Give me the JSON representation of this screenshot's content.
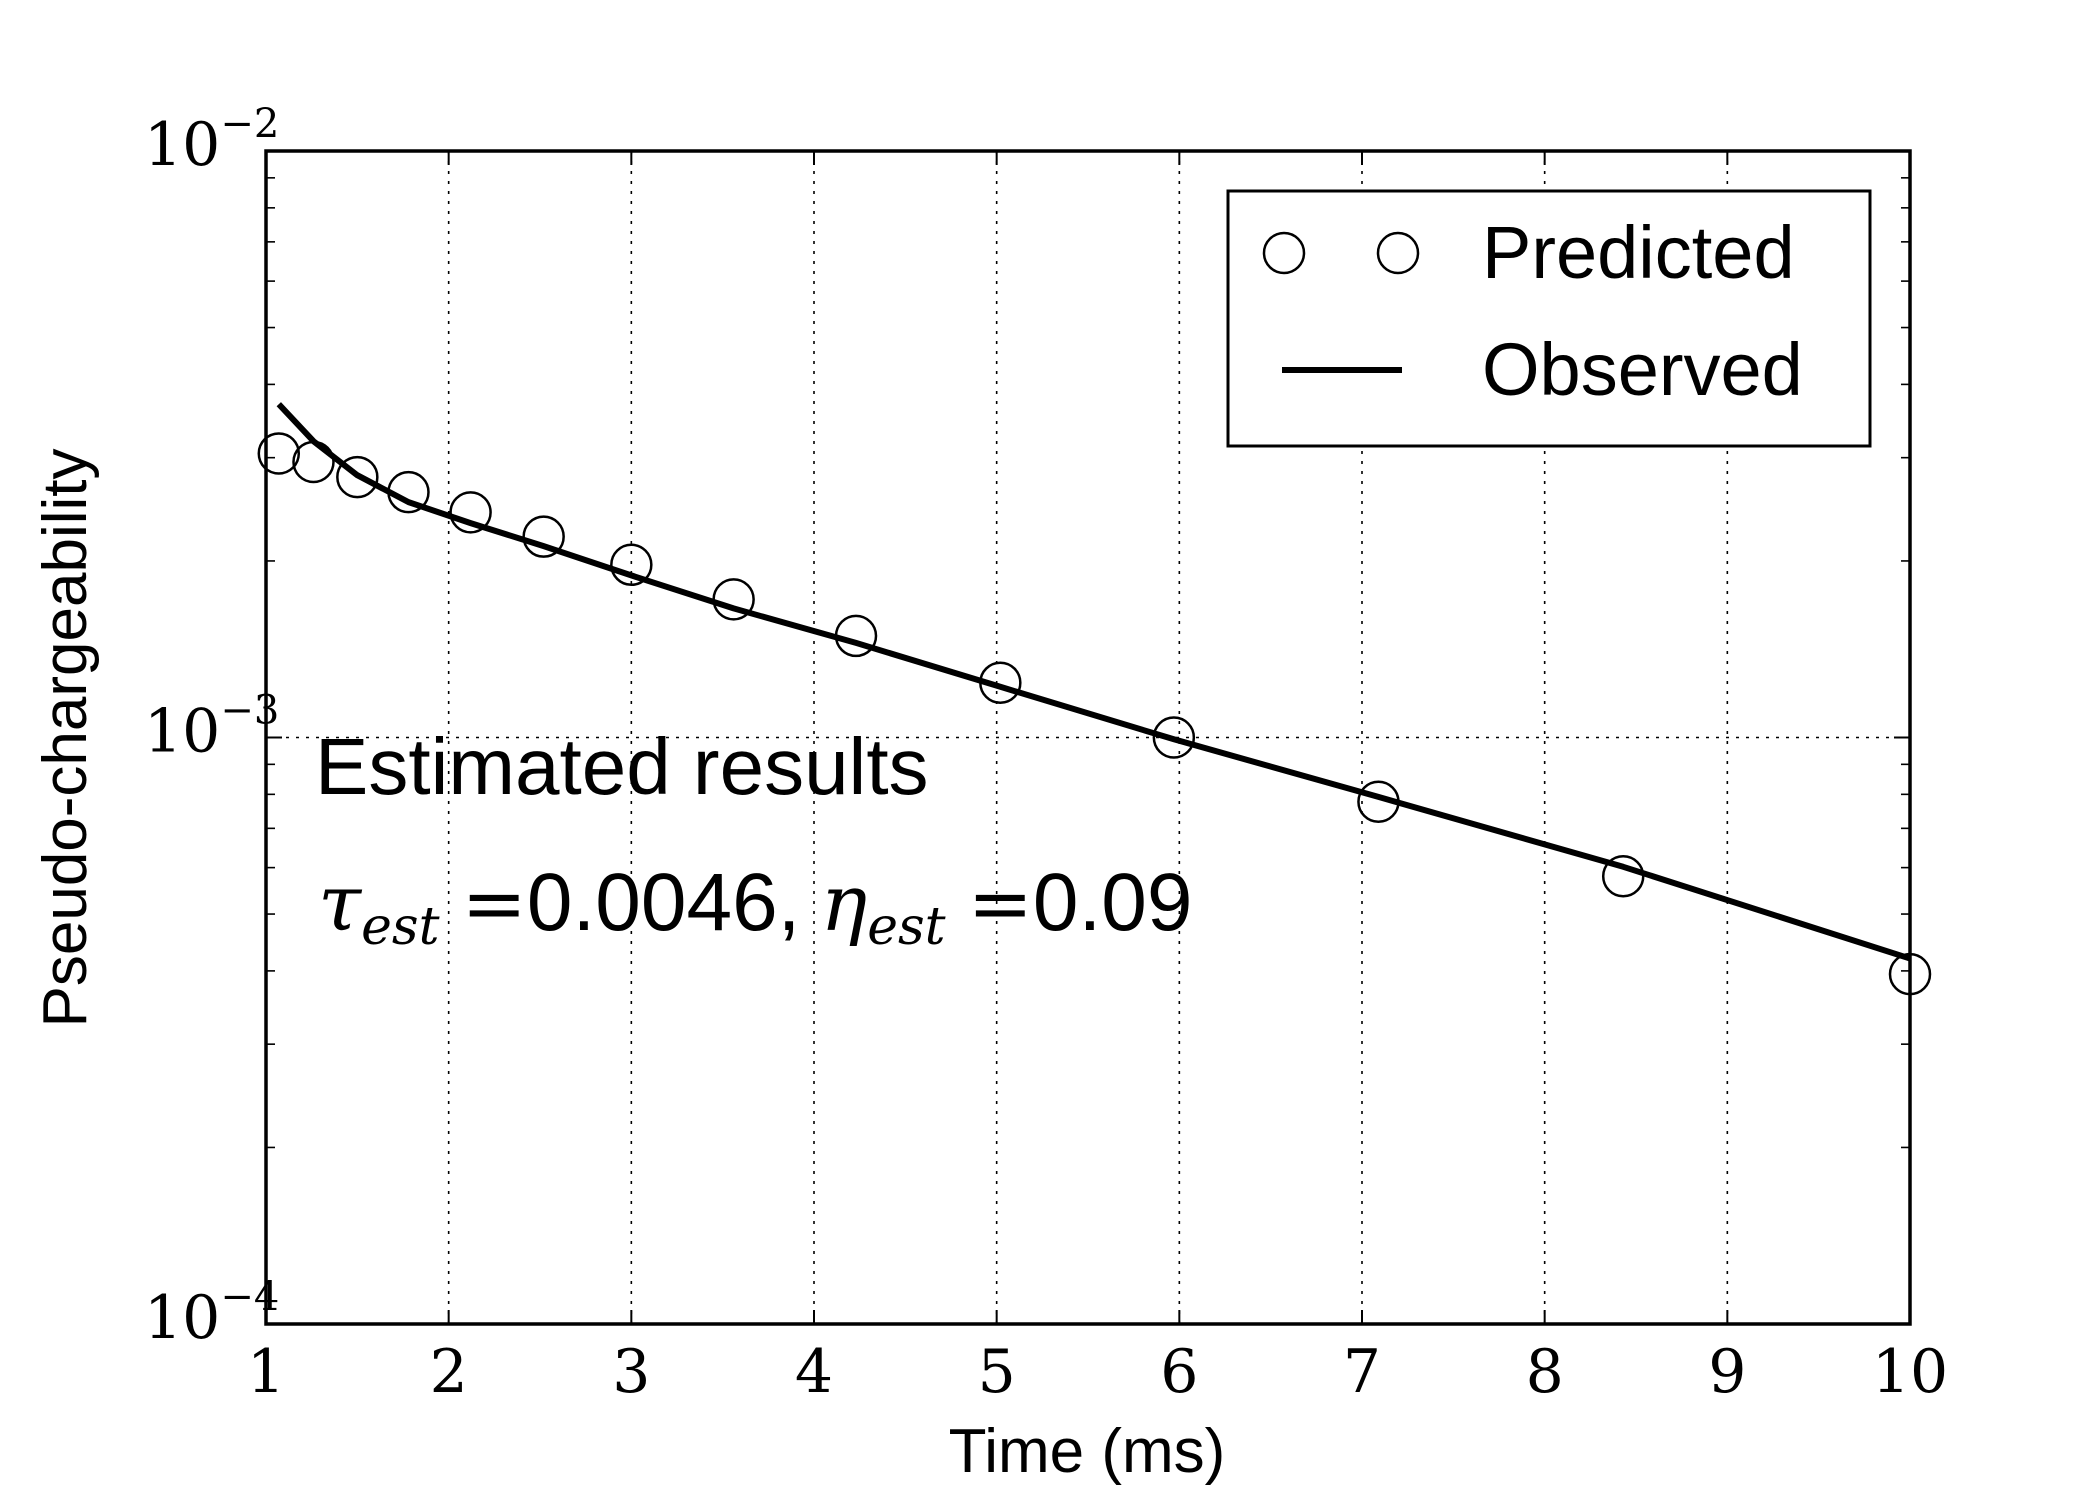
{
  "chart_data": {
    "type": "scatter",
    "xlabel": "Time (ms)",
    "ylabel": "Pseudo-chargeability",
    "xlim": [
      1,
      10
    ],
    "ylim": [
      0.0001,
      0.01
    ],
    "yscale": "log",
    "grid": true,
    "legend_position": "top-right",
    "x_ticks": [
      "1",
      "2",
      "3",
      "4",
      "5",
      "6",
      "7",
      "8",
      "9",
      "10"
    ],
    "y_ticks": [
      {
        "base": "10",
        "exp": "−4"
      },
      {
        "base": "10",
        "exp": "−3"
      },
      {
        "base": "10",
        "exp": "−2"
      }
    ],
    "series": [
      {
        "name": "Predicted",
        "mark": "open-circle",
        "x": [
          1.07,
          1.26,
          1.5,
          1.78,
          2.12,
          2.52,
          3.0,
          3.56,
          4.23,
          5.02,
          5.97,
          7.09,
          8.43,
          10.0
        ],
        "y": [
          0.00305,
          0.00295,
          0.00278,
          0.00262,
          0.00242,
          0.0022,
          0.00197,
          0.00172,
          0.00149,
          0.00124,
          0.001,
          0.000777,
          0.00058,
          0.000395
        ]
      },
      {
        "name": "Observed",
        "mark": "line",
        "x": [
          1.07,
          1.26,
          1.5,
          1.78,
          2.12,
          2.52,
          3.0,
          3.56,
          4.23,
          5.02,
          5.97,
          7.09,
          8.43,
          10.0
        ],
        "y": [
          0.0037,
          0.0032,
          0.0028,
          0.00252,
          0.00232,
          0.00212,
          0.00189,
          0.00166,
          0.00145,
          0.00122,
          0.000993,
          0.000792,
          0.000602,
          0.00042
        ]
      }
    ],
    "annotation": {
      "title": "Estimated results",
      "tau_symbol": "τ",
      "tau_sub": "est",
      "equals": "=",
      "tau_value": "0.0046,",
      "eta_symbol": "η",
      "eta_sub": "est",
      "eta_value": "0.09"
    }
  }
}
